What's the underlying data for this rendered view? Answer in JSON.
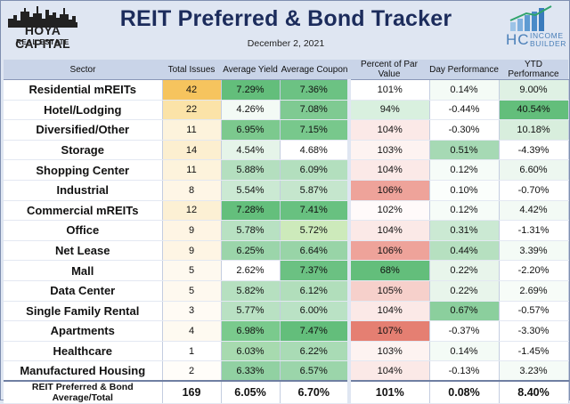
{
  "header": {
    "title": "REIT Preferred & Bond Tracker",
    "date": "December 2, 2021",
    "left_logo": {
      "brand": "HOYA CAPITAL",
      "sub": "REAL ESTATE"
    },
    "right_logo": {
      "mark": "HC",
      "line1": "INCOME",
      "line2": "BUILDER"
    }
  },
  "chart_data": {
    "type": "table",
    "title": "REIT Preferred & Bond Tracker",
    "columns": [
      "Sector",
      "Total Issues",
      "Average Yield",
      "Average Coupon",
      "Percent of Par Value",
      "Day Performance",
      "YTD Performance"
    ],
    "rows": [
      {
        "sector": "Residential mREITs",
        "issues": "42",
        "yield": "7.29%",
        "coupon": "7.36%",
        "par": "101%",
        "day": "0.14%",
        "ytd": "9.00%"
      },
      {
        "sector": "Hotel/Lodging",
        "issues": "22",
        "yield": "4.26%",
        "coupon": "7.08%",
        "par": "94%",
        "day": "-0.44%",
        "ytd": "40.54%"
      },
      {
        "sector": "Diversified/Other",
        "issues": "11",
        "yield": "6.95%",
        "coupon": "7.15%",
        "par": "104%",
        "day": "-0.30%",
        "ytd": "10.18%"
      },
      {
        "sector": "Storage",
        "issues": "14",
        "yield": "4.54%",
        "coupon": "4.68%",
        "par": "103%",
        "day": "0.51%",
        "ytd": "-4.39%"
      },
      {
        "sector": "Shopping Center",
        "issues": "11",
        "yield": "5.88%",
        "coupon": "6.09%",
        "par": "104%",
        "day": "0.12%",
        "ytd": "6.60%"
      },
      {
        "sector": "Industrial",
        "issues": "8",
        "yield": "5.54%",
        "coupon": "5.87%",
        "par": "106%",
        "day": "0.10%",
        "ytd": "-0.70%"
      },
      {
        "sector": "Commercial mREITs",
        "issues": "12",
        "yield": "7.28%",
        "coupon": "7.41%",
        "par": "102%",
        "day": "0.12%",
        "ytd": "4.42%"
      },
      {
        "sector": "Office",
        "issues": "9",
        "yield": "5.78%",
        "coupon": "5.72%",
        "par": "104%",
        "day": "0.31%",
        "ytd": "-1.31%"
      },
      {
        "sector": "Net Lease",
        "issues": "9",
        "yield": "6.25%",
        "coupon": "6.64%",
        "par": "106%",
        "day": "0.44%",
        "ytd": "3.39%"
      },
      {
        "sector": "Mall",
        "issues": "5",
        "yield": "2.62%",
        "coupon": "7.37%",
        "par": "68%",
        "day": "0.22%",
        "ytd": "-2.20%"
      },
      {
        "sector": "Data Center",
        "issues": "5",
        "yield": "5.82%",
        "coupon": "6.12%",
        "par": "105%",
        "day": "0.22%",
        "ytd": "2.69%"
      },
      {
        "sector": "Single Family Rental",
        "issues": "3",
        "yield": "5.77%",
        "coupon": "6.00%",
        "par": "104%",
        "day": "0.67%",
        "ytd": "-0.57%"
      },
      {
        "sector": "Apartments",
        "issues": "4",
        "yield": "6.98%",
        "coupon": "7.47%",
        "par": "107%",
        "day": "-0.37%",
        "ytd": "-3.30%"
      },
      {
        "sector": "Healthcare",
        "issues": "1",
        "yield": "6.03%",
        "coupon": "6.22%",
        "par": "103%",
        "day": "0.14%",
        "ytd": "-1.45%"
      },
      {
        "sector": "Manufactured Housing",
        "issues": "2",
        "yield": "6.33%",
        "coupon": "6.57%",
        "par": "104%",
        "day": "-0.13%",
        "ytd": "3.23%"
      }
    ],
    "total": {
      "sector": "REIT Preferred & Bond Average/Total",
      "issues": "169",
      "yield": "6.05%",
      "coupon": "6.70%",
      "par": "101%",
      "day": "0.08%",
      "ytd": "8.40%"
    },
    "cell_colors": {
      "issues": [
        "#f6c45e",
        "#fbe3a8",
        "#fdf3dc",
        "#fcefd0",
        "#fdf3dc",
        "#fef6e6",
        "#fcf0d4",
        "#fef5e4",
        "#fef5e4",
        "#fef9ef",
        "#fef9ef",
        "#fffbf4",
        "#fefaf1",
        "#ffffff",
        "#fffdf9"
      ],
      "yield": [
        "#63be7b",
        "#f3faf5",
        "#7cc98e",
        "#e5f4e9",
        "#b4dfbf",
        "#cbe9d3",
        "#64bf7c",
        "#b8e1c2",
        "#9bd5aa",
        "#ffffff",
        "#b6e0c0",
        "#b9e1c3",
        "#7aca8d",
        "#a7daaf",
        "#91d1a2"
      ],
      "coupon": [
        "#6cc283",
        "#7fca92",
        "#78c88c",
        "#ffffff",
        "#b3dfbe",
        "#c5e6cd",
        "#68c180",
        "#cdeabb",
        "#98d4a7",
        "#6bc182",
        "#b1debb",
        "#bae2c5",
        "#63be7b",
        "#a9dbb5",
        "#9bd5aa"
      ],
      "par": [
        "#ffffff",
        "#d9f0df",
        "#fbe9e7",
        "#fdf3f1",
        "#fbe9e7",
        "#eea39a",
        "#fffafa",
        "#fbe9e7",
        "#eea39a",
        "#63be7b",
        "#f6d0cb",
        "#fbe9e7",
        "#e57f72",
        "#fdf3f1",
        "#fbe9e7"
      ],
      "day": [
        "#f4fbf6",
        "#ffffff",
        "#ffffff",
        "#a6d9b4",
        "#f6fcf8",
        "#fbfefc",
        "#f6fcf8",
        "#cbe9d3",
        "#b6e0c0",
        "#e8f5eb",
        "#e8f5eb",
        "#8bcf9d",
        "#ffffff",
        "#f4fbf6",
        "#ffffff"
      ],
      "ytd": [
        "#dff1e4",
        "#63be7b",
        "#d8eedd",
        "#ffffff",
        "#edf7f0",
        "#ffffff",
        "#f3faf5",
        "#ffffff",
        "#f4fbf6",
        "#ffffff",
        "#f7fcf8",
        "#ffffff",
        "#ffffff",
        "#ffffff",
        "#f5fbf7"
      ]
    }
  }
}
